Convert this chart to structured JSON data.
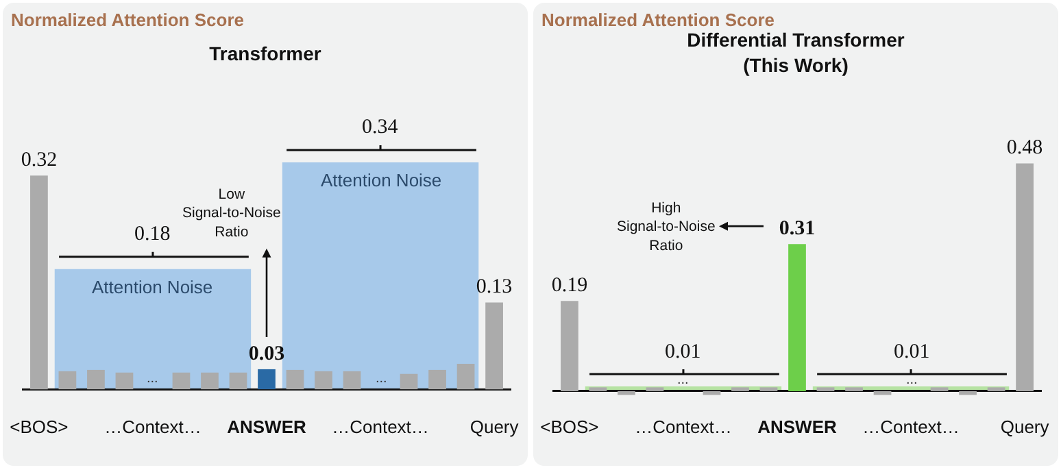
{
  "chart_data": [
    {
      "type": "bar",
      "title": "Transformer",
      "ylabel": "Normalized Attention Score",
      "categories": [
        "<BOS>",
        null,
        null,
        null,
        "…Context…",
        null,
        null,
        null,
        "ANSWER",
        null,
        null,
        null,
        "…Context…",
        null,
        null,
        null,
        "Query"
      ],
      "series": [
        {
          "colors": [
            "#ababab",
            "#ababab",
            "#ababab",
            "#ababab",
            "#ababab",
            "#ababab",
            "#ababab",
            "#ababab",
            "#2a6aa5",
            "#ababab",
            "#ababab",
            "#ababab",
            "#ababab",
            "#ababab",
            "#ababab",
            "#ababab",
            "#ababab"
          ],
          "values": [
            0.32,
            0.027,
            0.029,
            0.025,
            null,
            0.025,
            0.025,
            0.025,
            0.03,
            0.029,
            0.027,
            0.027,
            null,
            0.023,
            0.029,
            0.038,
            0.13
          ],
          "value_labels": [
            "0.32",
            null,
            null,
            null,
            null,
            null,
            null,
            null,
            "0.03",
            null,
            null,
            null,
            null,
            null,
            null,
            null,
            "0.13"
          ]
        }
      ],
      "bands": [
        {
          "axis": "y",
          "from": 0,
          "to": 0.18,
          "label": "Attention Noise",
          "color": "#a7c9ea"
        },
        {
          "axis": "y",
          "from": 0,
          "to": 0.34,
          "label": "Attention Noise",
          "color": "#a7c9ea"
        }
      ],
      "annotations": [
        "Low\nSignal-to-Noise\nRatio",
        "...",
        "...",
        {
          "text": "0.18",
          "y": 0.18
        },
        {
          "text": "0.34",
          "y": 0.34
        }
      ]
    },
    {
      "type": "bar",
      "title": "Differential Transformer\n(This Work)",
      "ylabel": "Normalized Attention Score",
      "categories": [
        "<BOS>",
        null,
        null,
        null,
        "…Context…",
        null,
        null,
        null,
        "ANSWER",
        null,
        null,
        null,
        "…Context…",
        null,
        null,
        null,
        "Query"
      ],
      "series": [
        {
          "colors": [
            "#ababab",
            "#ababab",
            "#ababab",
            "#ababab",
            "#ababab",
            "#ababab",
            "#ababab",
            "#ababab",
            "#6dcf4a",
            "#ababab",
            "#ababab",
            "#ababab",
            "#ababab",
            "#ababab",
            "#ababab",
            "#ababab",
            "#ababab"
          ],
          "values": [
            0.19,
            0.008,
            -0.008,
            0.008,
            null,
            -0.008,
            0.008,
            0.008,
            0.31,
            0.008,
            0.008,
            -0.008,
            null,
            0.008,
            -0.008,
            0.008,
            0.48
          ],
          "value_labels": [
            "0.19",
            null,
            null,
            null,
            null,
            null,
            null,
            null,
            "0.31",
            null,
            null,
            null,
            null,
            null,
            null,
            null,
            "0.48"
          ]
        }
      ],
      "bands": [
        {
          "axis": "y",
          "from": 0,
          "to": 0.01,
          "color": "#b6e3a3"
        },
        {
          "axis": "y",
          "from": 0,
          "to": 0.01,
          "color": "#b6e3a3"
        }
      ],
      "annotations": [
        "High\nSignal-to-Noise\nRatio",
        "...",
        "...",
        {
          "text": "0.01",
          "y": 0.01
        },
        {
          "text": "0.01",
          "y": 0.01
        }
      ]
    }
  ]
}
